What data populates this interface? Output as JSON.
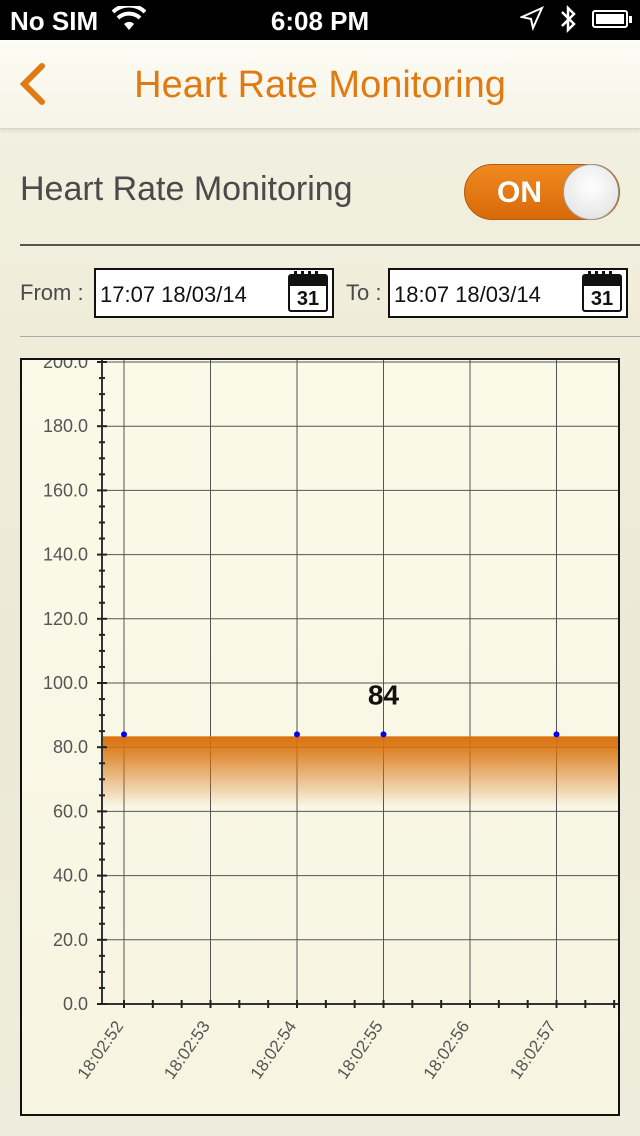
{
  "status_bar": {
    "carrier": "No SIM",
    "time": "6:08 PM",
    "icons": [
      "wifi-icon",
      "location-icon",
      "bluetooth-icon",
      "battery-icon"
    ]
  },
  "nav": {
    "back_icon": "chevron-left-icon",
    "title": "Heart Rate Monitoring"
  },
  "monitoring": {
    "label": "Heart Rate Monitoring",
    "toggle_text": "ON",
    "toggle_on": true
  },
  "range": {
    "from_label": "From :",
    "from_value": "17:07 18/03/14",
    "to_label": "To :",
    "to_value": "18:07 18/03/14",
    "calendar_icon": "calendar-icon",
    "calendar_day": "31"
  },
  "colors": {
    "accent": "#e07a12",
    "band": "#d9710c",
    "points": "#0000ee"
  },
  "chart_data": {
    "type": "line",
    "title": "",
    "xlabel": "",
    "ylabel": "",
    "ylim": [
      0,
      200
    ],
    "yticks": [
      "0.0",
      "20.0",
      "40.0",
      "60.0",
      "80.0",
      "100.0",
      "120.0",
      "140.0",
      "160.0",
      "180.0",
      "200.0"
    ],
    "categories": [
      "18:02:52",
      "18:02:53",
      "18:02:54",
      "18:02:55",
      "18:02:56",
      "18:02:57"
    ],
    "points": [
      {
        "x": "18:02:52",
        "y": 84
      },
      {
        "x": "18:02:54",
        "y": 84
      },
      {
        "x": "18:02:55",
        "y": 84
      },
      {
        "x": "18:02:57",
        "y": 84
      }
    ],
    "annotation": {
      "x": "18:02:55",
      "text": "84"
    },
    "grid": true
  }
}
